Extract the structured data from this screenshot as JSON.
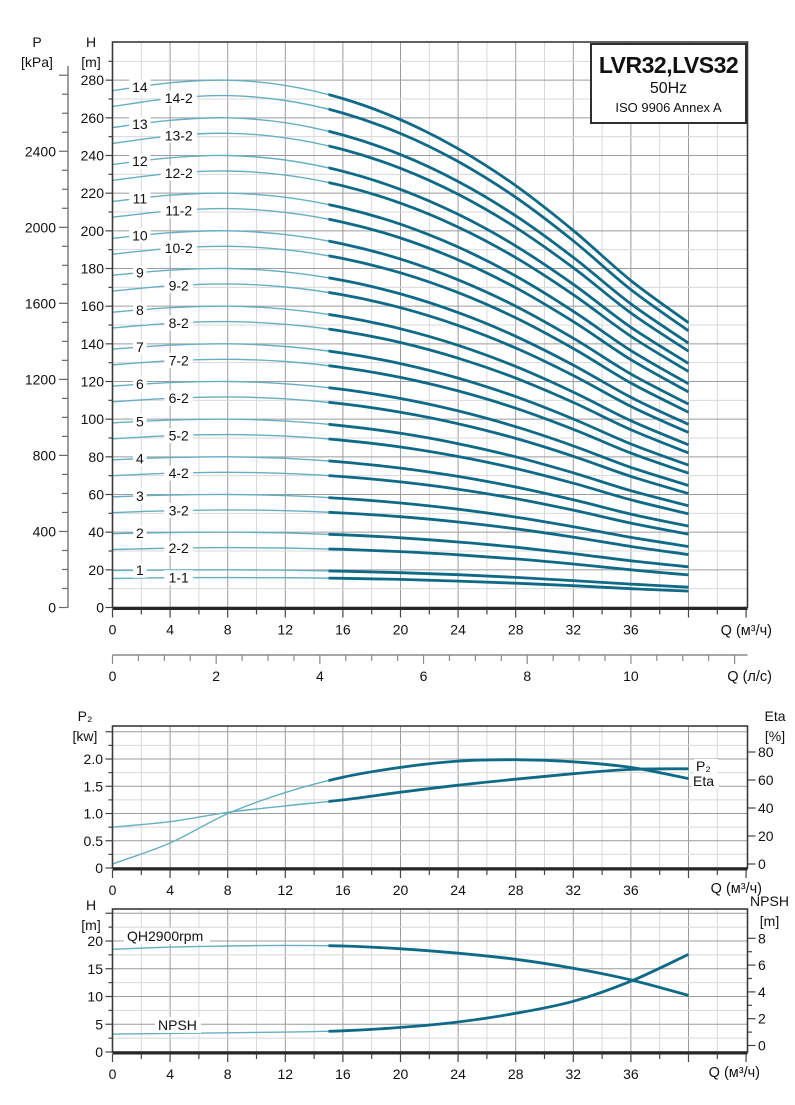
{
  "title_box": {
    "model": "LVR32,LVS32",
    "frequency": "50Hz",
    "standard": "ISO 9906 Annex A"
  },
  "headers": {
    "p": {
      "line1": "P",
      "line2": "[kPa]"
    },
    "h": {
      "line1": "H",
      "line2": "[m]"
    },
    "p2": {
      "line1": "P₂",
      "line2": "[kw]"
    },
    "eta": {
      "line1": "Eta",
      "line2": "[%]"
    },
    "h2": {
      "line1": "H",
      "line2": "[m]"
    },
    "npsh": {
      "line1": "NPSH",
      "line2": "[m]"
    }
  },
  "colors": {
    "curve_thin": "#66AFC2",
    "curve_thick": "#0E6A87",
    "grid_major": "#9C9C9C",
    "grid_minor": "#D8D8D8",
    "axis": "#3A3A3A",
    "axis_heavy": "#262626",
    "text": "#111111"
  },
  "chart_data": [
    {
      "type": "line",
      "id": "main-qh-curves",
      "title": "LVR32,LVS32",
      "subtitle": "50Hz",
      "note": "ISO 9906 Annex A",
      "x_axis": {
        "label": "Q (м³/ч)",
        "tick_labels": [
          "0",
          "4",
          "8",
          "12",
          "16",
          "20",
          "24",
          "28",
          "32",
          "36"
        ],
        "range": [
          0,
          44
        ],
        "minor_step": 2,
        "major_step": 4
      },
      "x_axis_secondary": {
        "label": "Q (л/с)",
        "tick_labels": [
          "0",
          "2",
          "4",
          "6",
          "8",
          "10"
        ],
        "range": [
          0,
          12.2
        ],
        "minor_step": 0.5
      },
      "y_axis_h": {
        "label": "H [m]",
        "tick_labels": [
          "0",
          "20",
          "40",
          "60",
          "80",
          "100",
          "120",
          "140",
          "160",
          "180",
          "200",
          "220",
          "240",
          "260",
          "280"
        ],
        "range": [
          0,
          300
        ],
        "minor_step": 10
      },
      "y_axis_p": {
        "label": "P [kPa]",
        "tick_labels": [
          "0",
          "400",
          "800",
          "1200",
          "1600",
          "2000",
          "2400"
        ],
        "range": [
          0,
          2840
        ],
        "minor_step": 100
      },
      "duty_range_q_start": 15,
      "q": [
        0,
        4,
        8,
        12,
        16,
        20,
        24,
        28,
        32,
        36,
        40
      ],
      "series": [
        {
          "label": "14",
          "values": [
            274.4,
            278.6,
            280.0,
            277.2,
            270.2,
            259.0,
            243.6,
            224.0,
            200.2,
            173.6,
            151.2
          ]
        },
        {
          "label": "14-2",
          "values": [
            266.0,
            270.3,
            271.8,
            269.2,
            262.5,
            251.7,
            236.8,
            217.8,
            194.7,
            168.8,
            146.9
          ]
        },
        {
          "label": "13",
          "values": [
            254.8,
            258.7,
            260.0,
            257.4,
            250.9,
            240.5,
            226.2,
            208.0,
            185.9,
            161.2,
            140.4
          ]
        },
        {
          "label": "13-2",
          "values": [
            246.4,
            250.4,
            251.8,
            249.4,
            243.2,
            233.2,
            219.4,
            201.8,
            180.4,
            156.4,
            136.1
          ]
        },
        {
          "label": "12",
          "values": [
            235.2,
            238.8,
            240.0,
            237.6,
            231.6,
            222.0,
            208.8,
            192.0,
            171.6,
            148.8,
            129.6
          ]
        },
        {
          "label": "12-2",
          "values": [
            226.8,
            230.5,
            231.8,
            229.6,
            223.9,
            214.7,
            202.0,
            185.8,
            166.1,
            144.0,
            125.3
          ]
        },
        {
          "label": "11",
          "values": [
            215.6,
            218.9,
            220.0,
            217.8,
            212.3,
            203.5,
            191.4,
            176.0,
            157.3,
            136.4,
            118.8
          ]
        },
        {
          "label": "11-2",
          "values": [
            207.2,
            210.6,
            211.8,
            209.8,
            204.6,
            196.2,
            184.6,
            169.8,
            151.8,
            131.6,
            114.5
          ]
        },
        {
          "label": "10",
          "values": [
            196.0,
            199.0,
            200.0,
            198.0,
            193.0,
            185.0,
            174.0,
            160.0,
            143.0,
            124.0,
            108.0
          ]
        },
        {
          "label": "10-2",
          "values": [
            187.6,
            190.7,
            191.8,
            190.0,
            185.3,
            177.7,
            167.2,
            153.8,
            137.5,
            119.2,
            103.7
          ]
        },
        {
          "label": "9",
          "values": [
            176.4,
            179.1,
            180.0,
            178.2,
            173.7,
            166.5,
            156.6,
            144.0,
            128.7,
            111.6,
            97.2
          ]
        },
        {
          "label": "9-2",
          "values": [
            168.0,
            170.8,
            171.8,
            170.2,
            166.0,
            159.2,
            149.8,
            137.8,
            123.2,
            106.8,
            92.9
          ]
        },
        {
          "label": "8",
          "values": [
            156.8,
            159.2,
            160.0,
            158.4,
            154.4,
            148.0,
            139.2,
            128.0,
            114.4,
            99.2,
            86.4
          ]
        },
        {
          "label": "8-2",
          "values": [
            148.4,
            150.9,
            151.8,
            150.4,
            146.7,
            140.7,
            132.4,
            121.8,
            108.9,
            94.4,
            82.1
          ]
        },
        {
          "label": "7",
          "values": [
            137.2,
            139.3,
            140.0,
            138.6,
            135.1,
            129.5,
            121.8,
            112.0,
            100.1,
            86.8,
            75.6
          ]
        },
        {
          "label": "7-2",
          "values": [
            128.8,
            131.0,
            131.8,
            130.6,
            127.4,
            122.2,
            115.0,
            105.8,
            94.6,
            82.0,
            71.3
          ]
        },
        {
          "label": "6",
          "values": [
            117.6,
            119.4,
            120.0,
            118.8,
            115.8,
            111.0,
            104.4,
            96.0,
            85.8,
            74.4,
            64.8
          ]
        },
        {
          "label": "6-2",
          "values": [
            109.2,
            111.1,
            111.8,
            110.8,
            108.1,
            103.7,
            97.6,
            89.8,
            80.3,
            69.6,
            60.5
          ]
        },
        {
          "label": "5",
          "values": [
            98.0,
            99.5,
            100.0,
            99.0,
            96.5,
            92.5,
            87.0,
            80.0,
            71.5,
            62.0,
            54.0
          ]
        },
        {
          "label": "5-2",
          "values": [
            89.6,
            91.2,
            91.8,
            91.0,
            88.8,
            85.2,
            80.2,
            73.8,
            66.0,
            57.2,
            49.7
          ]
        },
        {
          "label": "4",
          "values": [
            78.4,
            79.6,
            80.0,
            79.2,
            77.2,
            74.0,
            69.6,
            64.0,
            57.2,
            49.6,
            43.2
          ]
        },
        {
          "label": "4-2",
          "values": [
            70.0,
            71.3,
            71.8,
            71.2,
            69.5,
            66.7,
            62.8,
            57.8,
            51.7,
            44.8,
            38.9
          ]
        },
        {
          "label": "3",
          "values": [
            58.8,
            59.7,
            60.0,
            59.4,
            57.9,
            55.5,
            52.2,
            48.0,
            42.9,
            37.2,
            32.4
          ]
        },
        {
          "label": "3-2",
          "values": [
            50.4,
            51.4,
            51.8,
            51.4,
            50.2,
            48.2,
            45.4,
            41.8,
            37.4,
            32.4,
            28.1
          ]
        },
        {
          "label": "2",
          "values": [
            39.2,
            39.8,
            40.0,
            39.6,
            38.6,
            37.0,
            34.8,
            32.0,
            28.6,
            24.8,
            21.6
          ]
        },
        {
          "label": "2-2",
          "values": [
            30.8,
            31.5,
            31.8,
            31.6,
            30.9,
            29.7,
            28.0,
            25.8,
            23.1,
            20.0,
            17.3
          ]
        },
        {
          "label": "1",
          "values": [
            19.6,
            19.9,
            20.0,
            19.8,
            19.3,
            18.5,
            17.4,
            16.0,
            14.3,
            12.4,
            10.8
          ]
        },
        {
          "label": "1-1",
          "values": [
            15.4,
            15.8,
            15.9,
            15.8,
            15.5,
            14.9,
            14.0,
            12.9,
            11.6,
            10.0,
            8.7
          ]
        }
      ]
    },
    {
      "type": "line",
      "id": "power-efficiency",
      "x_axis": {
        "label": "Q (м³/ч)",
        "tick_labels": [
          "0",
          "4",
          "8",
          "12",
          "16",
          "20",
          "24",
          "28",
          "32",
          "36"
        ],
        "range": [
          0,
          44
        ],
        "minor_step": 2,
        "major_step": 4
      },
      "y_axis_left": {
        "label": "P₂ [kw]",
        "tick_labels": [
          "0",
          "0.5",
          "1.0",
          "1.5",
          "2.0"
        ],
        "range": [
          0,
          2.6
        ],
        "minor_step": 0.25
      },
      "y_axis_right": {
        "label": "Eta [%]",
        "tick_labels": [
          "0",
          "20",
          "40",
          "60",
          "80"
        ],
        "range": [
          0,
          100
        ],
        "minor_step": 20
      },
      "duty_range_q_start": 15,
      "q": [
        0,
        4,
        8,
        12,
        16,
        20,
        24,
        28,
        32,
        36,
        40
      ],
      "series": [
        {
          "label": "P₂",
          "axis": "left",
          "values": [
            0.75,
            0.85,
            1.02,
            1.14,
            1.25,
            1.39,
            1.52,
            1.63,
            1.73,
            1.81,
            1.82
          ]
        },
        {
          "label": "Eta",
          "axis": "right",
          "values": [
            0,
            15,
            36,
            51,
            62,
            69,
            73.5,
            74.5,
            73,
            69,
            61
          ]
        }
      ]
    },
    {
      "type": "line",
      "id": "qh-npsh",
      "x_axis": {
        "label": "Q (м³/ч)",
        "tick_labels": [
          "0",
          "4",
          "8",
          "12",
          "16",
          "20",
          "24",
          "28",
          "32",
          "36"
        ],
        "range": [
          0,
          44
        ],
        "minor_step": 2,
        "major_step": 4
      },
      "y_axis_left": {
        "label": "H [m]",
        "tick_labels": [
          "0",
          "5",
          "10",
          "15",
          "20"
        ],
        "range": [
          0,
          25.8
        ],
        "minor_step": 2.5
      },
      "y_axis_right": {
        "label": "NPSH [m]",
        "tick_labels": [
          "0",
          "2",
          "4",
          "6",
          "8"
        ],
        "range": [
          0,
          8.9
        ],
        "minor_step": 1
      },
      "duty_range_q_start": 15,
      "q": [
        0,
        4,
        8,
        12,
        16,
        20,
        24,
        28,
        32,
        36,
        40
      ],
      "series": [
        {
          "label": "QH2900rpm",
          "axis": "left",
          "values": [
            18.5,
            18.9,
            19.1,
            19.2,
            19.1,
            18.6,
            17.8,
            16.7,
            15.1,
            13.0,
            10.2
          ]
        },
        {
          "label": "NPSH",
          "axis": "right",
          "values": [
            0.85,
            0.9,
            0.95,
            1.0,
            1.1,
            1.35,
            1.75,
            2.4,
            3.3,
            4.8,
            6.8
          ]
        }
      ]
    }
  ]
}
